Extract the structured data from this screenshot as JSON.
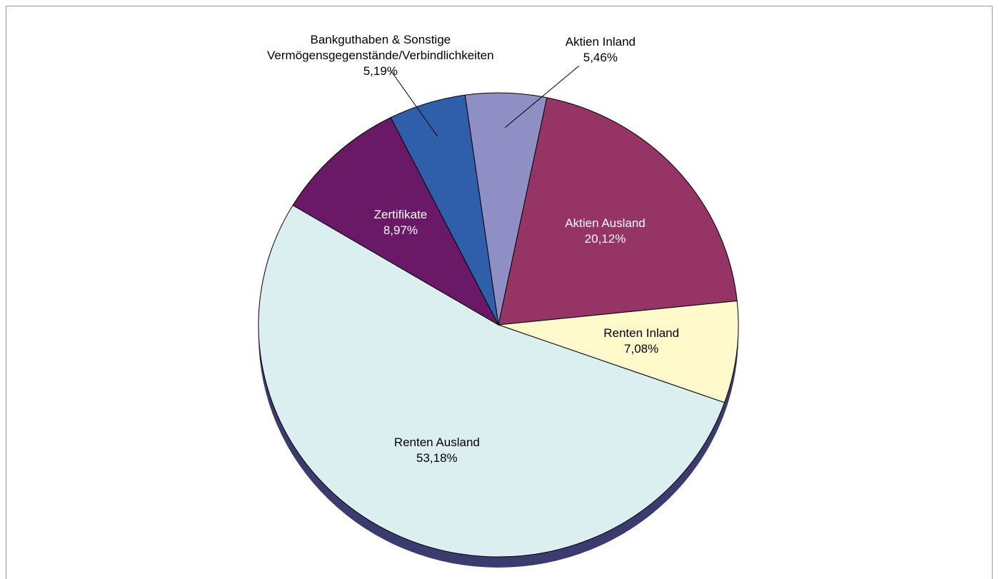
{
  "chart_data": {
    "type": "pie",
    "categories": [
      "Aktien Inland",
      "Aktien Ausland",
      "Renten Inland",
      "Renten Ausland",
      "Zertifikate",
      "Bankguthaben & Sonstige\nVermögensgegenstände/Verbindlichkeiten"
    ],
    "values": [
      5.46,
      20.12,
      7.08,
      53.18,
      8.97,
      5.19
    ],
    "value_labels": [
      "5,46%",
      "20,12%",
      "7,08%",
      "53,18%",
      "8,97%",
      "5,19%"
    ],
    "colors": [
      "#8f8fc6",
      "#963465",
      "#fff9cc",
      "#dbeff1",
      "#6a1967",
      "#2f5fab"
    ]
  }
}
